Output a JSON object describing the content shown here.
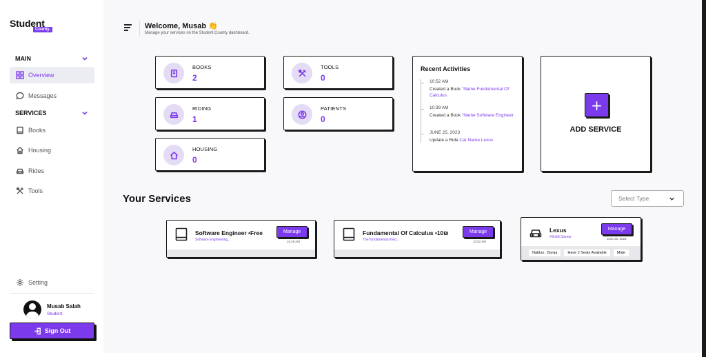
{
  "brand": {
    "name": "Student",
    "tag": "County."
  },
  "sidebar": {
    "main_label": "MAIN",
    "services_label": "SERVICES",
    "main_items": [
      {
        "label": "Overview",
        "icon": "grid-icon",
        "active": true
      },
      {
        "label": "Messages",
        "icon": "chat-icon",
        "active": false
      }
    ],
    "service_items": [
      {
        "label": "Books",
        "icon": "book-icon"
      },
      {
        "label": "Housing",
        "icon": "home-icon"
      },
      {
        "label": "Rides",
        "icon": "car-icon"
      },
      {
        "label": "Tools",
        "icon": "tools-icon"
      }
    ],
    "setting_label": "Setting",
    "user": {
      "name": "Musab Salah",
      "role": "Student"
    },
    "signout_label": "Sign Out"
  },
  "header": {
    "welcome": "Welcome, Musab 👏",
    "subtitle": "Manage your services on the Student County dashboard."
  },
  "stats": [
    {
      "label": "BOOKS",
      "value": "2",
      "icon": "book-icon"
    },
    {
      "label": "TOOLS",
      "value": "0",
      "icon": "tools-icon"
    },
    {
      "label": "RIDING",
      "value": "1",
      "icon": "car-icon"
    },
    {
      "label": "PATIENTS",
      "value": "0",
      "icon": "user-icon"
    },
    {
      "label": "HOUSING",
      "value": "0",
      "icon": "home-icon"
    }
  ],
  "activities": {
    "title": "Recent Activities",
    "items": [
      {
        "time": "10:52 AM",
        "text": "Created a Book ",
        "highlight": "\"Name Fundamental Of Calculus"
      },
      {
        "time": "10:39 AM",
        "text": "Created a Book ",
        "highlight": "\"Name Software Engineer"
      },
      {
        "time": "JUNE 25, 2023",
        "text": "Update a Ride ",
        "highlight": "Car Name Lexus"
      }
    ]
  },
  "add_service": {
    "symbol": "+",
    "label": "ADD SERVICE"
  },
  "your_services": {
    "title": "Your Services",
    "select_placeholder": "Select Type",
    "cards": [
      {
        "name": "Software Engineer •Free",
        "desc": "Software engineering...",
        "manage_label": "Manage",
        "time": "10:26 AM",
        "icon": "book-icon"
      },
      {
        "name": "Fundamental Of Calculus •10₪",
        "desc": "The fundamental theo...",
        "manage_label": "Manage",
        "time": "10:52 AM",
        "icon": "book-icon"
      },
      {
        "name": "Lexus",
        "desc": "#Smith,Samur",
        "manage_label": "Manage",
        "time": "June 25, 2023",
        "icon": "car-icon",
        "chips": [
          "Nablus , Burqa",
          "Have 2 Seats Available",
          "Male"
        ]
      }
    ]
  },
  "colors": {
    "accent": "#7c3aed",
    "accent_light": "#e4dcf5",
    "background": "#f8f8fa"
  }
}
